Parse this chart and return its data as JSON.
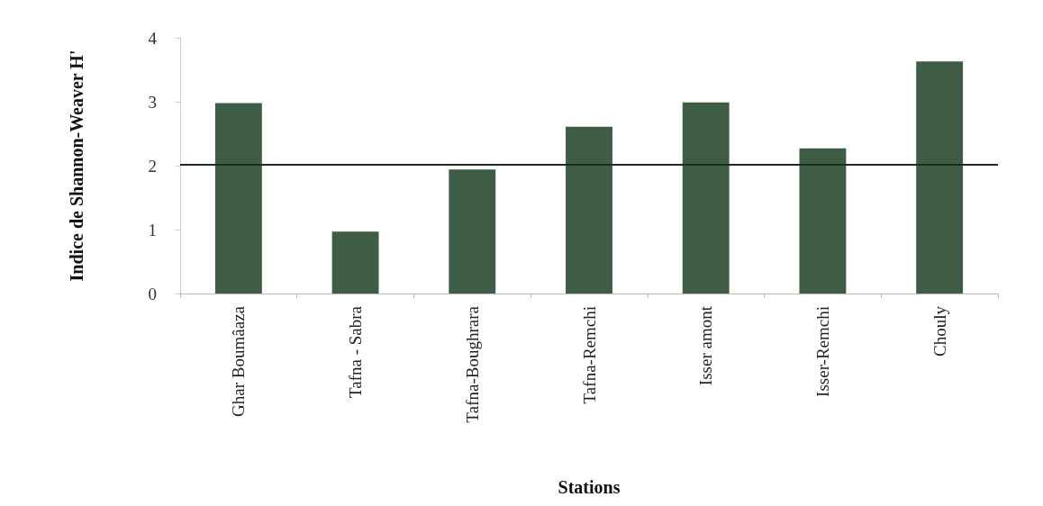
{
  "chart_data": {
    "type": "bar",
    "xlabel": "Stations",
    "ylabel": "Indice de Shannon-Weaver H'",
    "categories": [
      "Ghar Boumâaza",
      "Tafna - Sabra",
      "Tafna-Boughrara",
      "Tafna-Remchi",
      "Isser amont",
      "Isser-Remchi",
      "Chouly"
    ],
    "values": [
      2.98,
      0.97,
      1.94,
      2.61,
      2.99,
      2.27,
      3.63
    ],
    "color": "#3f5c45",
    "ylim": [
      0,
      4
    ],
    "yticks": [
      0,
      1,
      2,
      3,
      4
    ],
    "ref_lines": [
      {
        "axis": "y",
        "value": 2.02,
        "color": "#1e2a22"
      }
    ],
    "grid": false
  }
}
